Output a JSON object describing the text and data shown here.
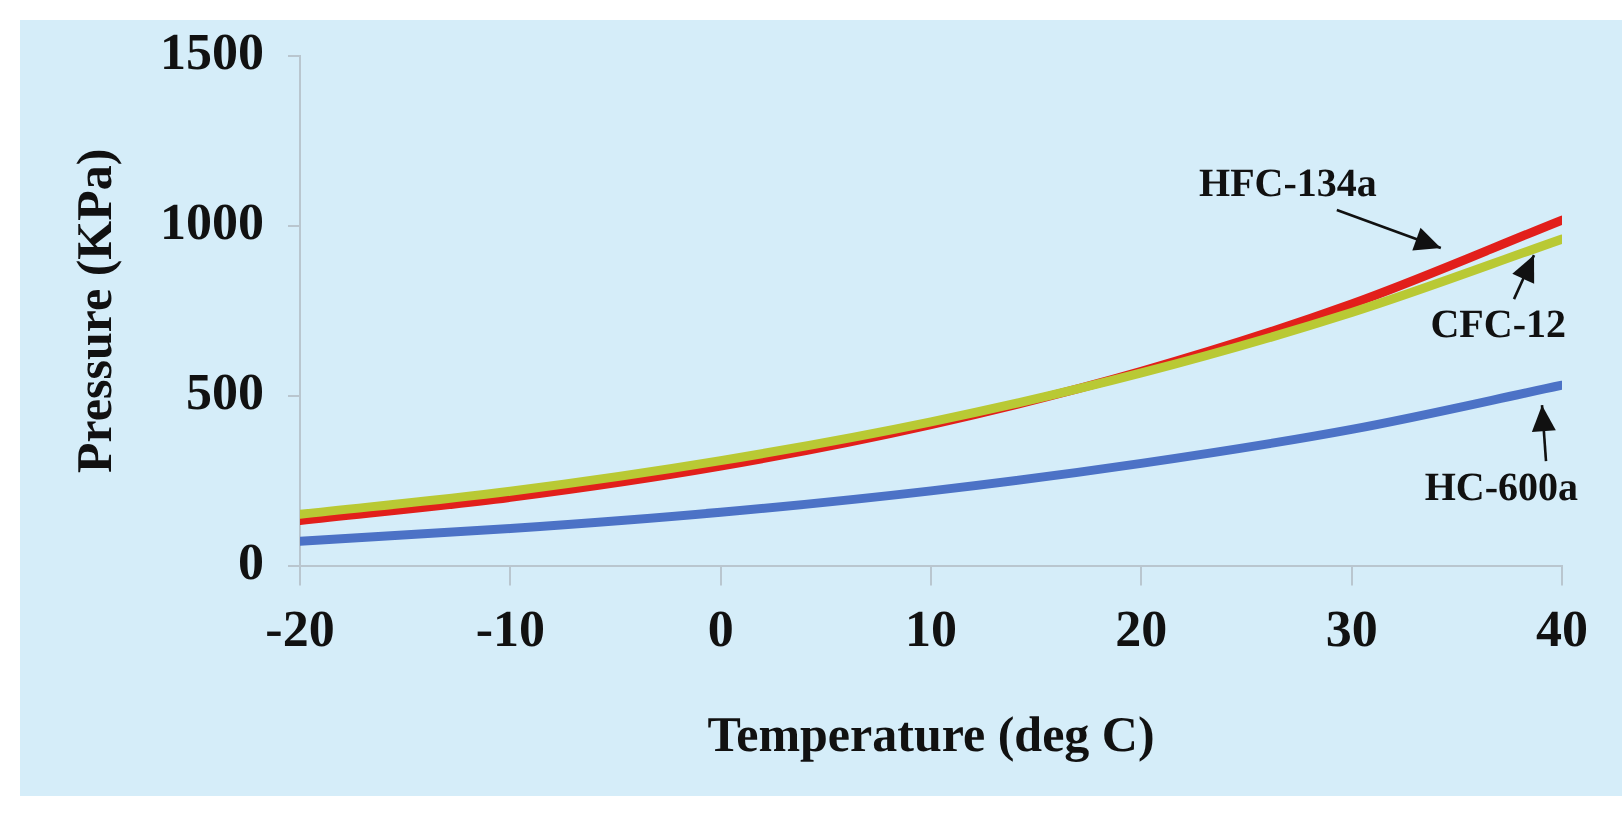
{
  "chart_data": {
    "type": "line",
    "xlabel": "Temperature (deg C)",
    "ylabel": "Pressure (KPa)",
    "x": [
      -20,
      -10,
      0,
      10,
      20,
      30,
      40
    ],
    "series": [
      {
        "name": "CFC-12",
        "color": "#b9c934",
        "values": [
          151,
          219,
          309,
          423,
          567,
          745,
          961
        ]
      },
      {
        "name": "HFC-134a",
        "color": "#e21f1b",
        "values": [
          133,
          201,
          293,
          415,
          572,
          770,
          1017
        ]
      },
      {
        "name": "HC-600a",
        "color": "#4c72c6",
        "values": [
          72,
          109,
          157,
          220,
          301,
          401,
          531
        ]
      }
    ],
    "xlim": [
      -20,
      40
    ],
    "xticks": [
      -20,
      -10,
      0,
      10,
      20,
      30,
      40
    ],
    "ylim": [
      0,
      1500
    ],
    "yticks": [
      0,
      500,
      1000,
      1500
    ],
    "grid": false,
    "legend": false,
    "marker": "none",
    "line_style": "solid"
  }
}
